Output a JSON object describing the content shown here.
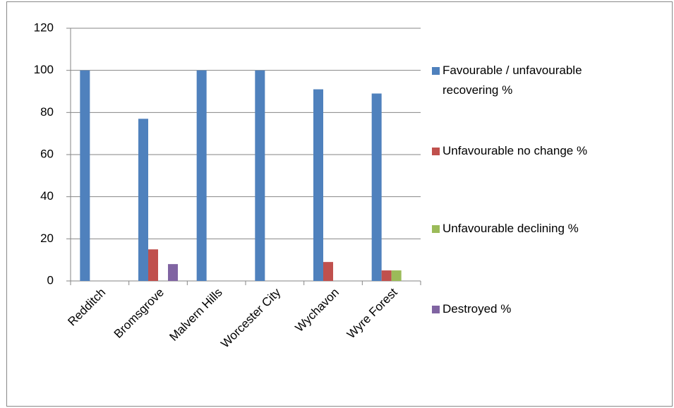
{
  "chart_data": {
    "type": "bar",
    "categories": [
      "Redditch",
      "Bromsgrove",
      "Malvern Hills",
      "Worcester City",
      "Wychavon",
      "Wyre Forest"
    ],
    "series": [
      {
        "name": "Favourable / unfavourable recovering %",
        "color": "#4f81bd",
        "values": [
          100,
          77,
          100,
          100,
          91,
          89
        ]
      },
      {
        "name": "Unfavourable no change %",
        "color": "#c0504d",
        "values": [
          0,
          15,
          0,
          0,
          9,
          5
        ]
      },
      {
        "name": "Unfavourable declining %",
        "color": "#9bbb59",
        "values": [
          0,
          0,
          0,
          0,
          0,
          5
        ]
      },
      {
        "name": "Destroyed %",
        "color": "#8064a2",
        "values": [
          0,
          8,
          0,
          0,
          0,
          0
        ]
      }
    ],
    "ylim": [
      0,
      120
    ],
    "yticks": [
      0,
      20,
      40,
      60,
      80,
      100,
      120
    ],
    "grid": true,
    "legend": "right"
  }
}
